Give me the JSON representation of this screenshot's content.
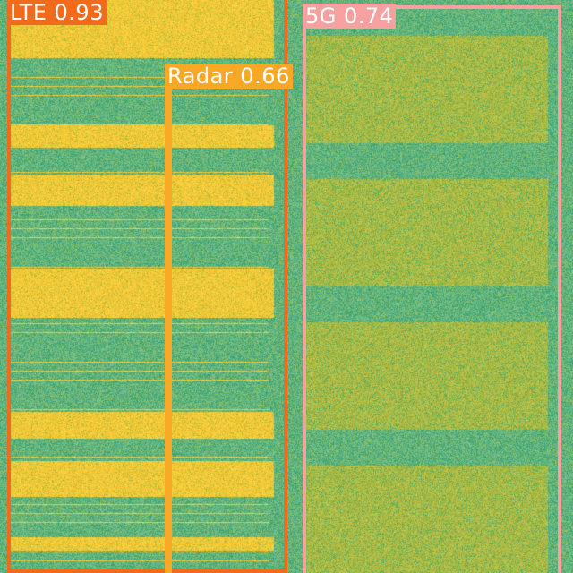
{
  "detections": [
    {
      "label": "LTE",
      "score": "0.93",
      "color": "#f26b1d"
    },
    {
      "label": "5G",
      "score": "0.74",
      "color": "#f7a0a0"
    },
    {
      "label": "Radar",
      "score": "0.66",
      "color": "#f9a825"
    }
  ],
  "tags": {
    "lte": "LTE 0.93",
    "fiveg": "5G 0.74",
    "radar": "Radar 0.66"
  },
  "palette": {
    "band_low": "#3fae82",
    "band_mid": "#9db63a",
    "band_high": "#f4c431"
  }
}
